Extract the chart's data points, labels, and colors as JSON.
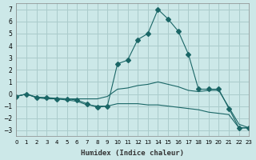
{
  "xlabel": "Humidex (Indice chaleur)",
  "ylabel": "",
  "background_color": "#cce8e8",
  "grid_color": "#aacccc",
  "line_color": "#1a6666",
  "xlim": [
    0,
    23
  ],
  "ylim": [
    -3.5,
    7.5
  ],
  "yticks": [
    -3,
    -2,
    -1,
    0,
    1,
    2,
    3,
    4,
    5,
    6,
    7
  ],
  "xticks": [
    0,
    1,
    2,
    3,
    4,
    5,
    6,
    7,
    8,
    9,
    10,
    11,
    12,
    13,
    14,
    15,
    16,
    17,
    18,
    19,
    20,
    21,
    22,
    23
  ],
  "series": [
    {
      "x": [
        0,
        1,
        2,
        3,
        4,
        5,
        6,
        7,
        8,
        9,
        10,
        11,
        12,
        13,
        14,
        15,
        16,
        17,
        18,
        19,
        20,
        21,
        22,
        23
      ],
      "y": [
        -0.2,
        0.0,
        -0.3,
        -0.3,
        -0.4,
        -0.4,
        -0.5,
        -0.8,
        -1.1,
        -1.0,
        2.5,
        2.8,
        4.5,
        5.0,
        7.0,
        6.2,
        5.2,
        3.3,
        0.4,
        0.4,
        0.4,
        -1.2,
        -2.8,
        -2.8
      ],
      "marker": "D",
      "markersize": 3
    },
    {
      "x": [
        0,
        1,
        2,
        3,
        4,
        5,
        6,
        7,
        8,
        9,
        10,
        11,
        12,
        13,
        14,
        15,
        16,
        17,
        18,
        19,
        20,
        21,
        22,
        23
      ],
      "y": [
        -0.2,
        0.0,
        -0.3,
        -0.4,
        -0.4,
        -0.5,
        -0.6,
        -0.9,
        -1.0,
        -1.0,
        -0.8,
        -0.8,
        -0.8,
        -0.9,
        -0.9,
        -1.0,
        -1.1,
        -1.2,
        -1.3,
        -1.5,
        -1.6,
        -1.7,
        -2.8,
        -2.8
      ],
      "marker": null,
      "markersize": 0
    },
    {
      "x": [
        0,
        1,
        2,
        3,
        4,
        5,
        6,
        7,
        8,
        9,
        10,
        11,
        12,
        13,
        14,
        15,
        16,
        17,
        18,
        19,
        20,
        21,
        22,
        23
      ],
      "y": [
        -0.2,
        0.0,
        -0.25,
        -0.3,
        -0.35,
        -0.4,
        -0.4,
        -0.4,
        -0.4,
        -0.2,
        0.4,
        0.5,
        0.7,
        0.8,
        1.0,
        0.8,
        0.6,
        0.3,
        0.2,
        0.3,
        0.3,
        -1.1,
        -2.5,
        -2.8
      ],
      "marker": null,
      "markersize": 0
    }
  ]
}
